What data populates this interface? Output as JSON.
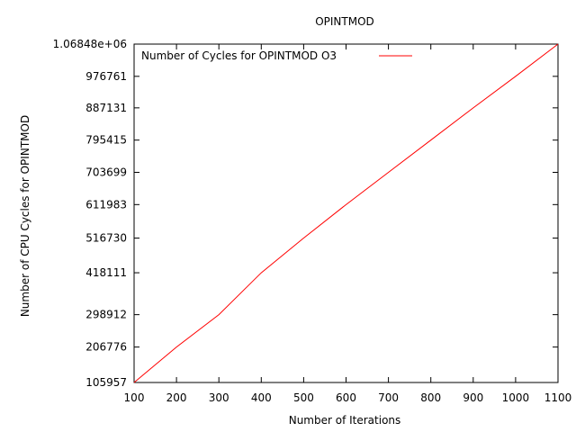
{
  "chart_data": {
    "type": "line",
    "title": "OPINTMOD",
    "xlabel": "Number of Iterations",
    "ylabel": "Number of CPU Cycles for OPINTMOD",
    "xlim": [
      100,
      1100
    ],
    "ylim": [
      105957,
      1068480
    ],
    "x_ticks": [
      {
        "value": 100,
        "label": "100"
      },
      {
        "value": 200,
        "label": "200"
      },
      {
        "value": 300,
        "label": "300"
      },
      {
        "value": 400,
        "label": "400"
      },
      {
        "value": 500,
        "label": "500"
      },
      {
        "value": 600,
        "label": "600"
      },
      {
        "value": 700,
        "label": "700"
      },
      {
        "value": 800,
        "label": "800"
      },
      {
        "value": 900,
        "label": "900"
      },
      {
        "value": 1000,
        "label": "1000"
      },
      {
        "value": 1100,
        "label": "1100"
      }
    ],
    "y_ticks": [
      {
        "value": 105957,
        "label": "105957"
      },
      {
        "value": 206776,
        "label": "206776"
      },
      {
        "value": 298912,
        "label": "298912"
      },
      {
        "value": 418111,
        "label": "418111"
      },
      {
        "value": 516730,
        "label": "516730"
      },
      {
        "value": 611983,
        "label": "611983"
      },
      {
        "value": 703699,
        "label": "703699"
      },
      {
        "value": 795415,
        "label": "795415"
      },
      {
        "value": 887131,
        "label": "887131"
      },
      {
        "value": 976761,
        "label": "976761"
      },
      {
        "value": 1068480,
        "label": "1.06848e+06"
      }
    ],
    "grid": false,
    "legend_position": "top-left",
    "series": [
      {
        "name": "Number of Cycles for OPINTMOD O3",
        "color": "#ff0000",
        "x": [
          100,
          200,
          300,
          400,
          500,
          600,
          700,
          800,
          900,
          1000,
          1100
        ],
        "y": [
          105957,
          206776,
          298912,
          418111,
          516730,
          611983,
          703699,
          795415,
          887131,
          976761,
          1068480
        ]
      }
    ]
  }
}
